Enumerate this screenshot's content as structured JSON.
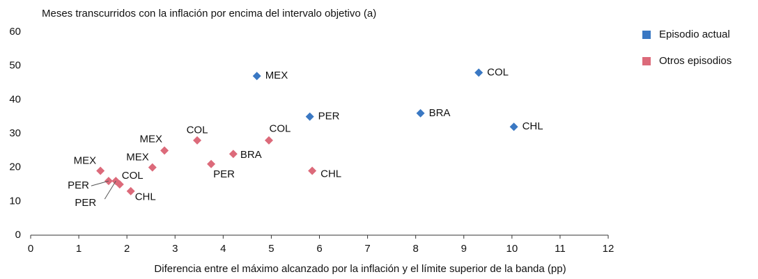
{
  "chart_data": {
    "type": "scatter",
    "y_axis_title": "Meses transcurridos con la inflación por encima del intervalo objetivo (a)",
    "x_axis_title": "Diferencia entre el máximo alcanzado por la inflación y el límite superior de la banda (pp)",
    "xlim": [
      0,
      12
    ],
    "xticks": [
      0,
      1,
      2,
      3,
      4,
      5,
      6,
      7,
      8,
      9,
      10,
      11,
      12
    ],
    "ylim": [
      0,
      60
    ],
    "yticks": [
      0,
      10,
      20,
      30,
      40,
      50,
      60
    ],
    "grid": false,
    "legend": "right",
    "series": [
      {
        "name": "Episodio actual",
        "color": "#3a78c3",
        "x": [
          4.7,
          5.8,
          8.1,
          9.31,
          10.04
        ],
        "values": [
          47,
          35,
          36,
          48,
          32
        ],
        "point_labels": [
          "MEX",
          "PER",
          "BRA",
          "COL",
          "CHL"
        ]
      },
      {
        "name": "Otros episodios",
        "color": "#dc6a7a",
        "x": [
          1.45,
          1.62,
          1.77,
          1.85,
          2.08,
          2.53,
          2.78,
          3.46,
          3.75,
          4.21,
          4.95,
          5.85
        ],
        "values": [
          19,
          16,
          16,
          15,
          13,
          20,
          25,
          28,
          21,
          24,
          28,
          19
        ],
        "point_labels": [
          "MEX",
          "PER",
          "PER",
          "COL",
          "CHL",
          "MEX",
          "MEX",
          "COL",
          "PER",
          "BRA",
          "COL",
          "CHL"
        ]
      }
    ]
  }
}
